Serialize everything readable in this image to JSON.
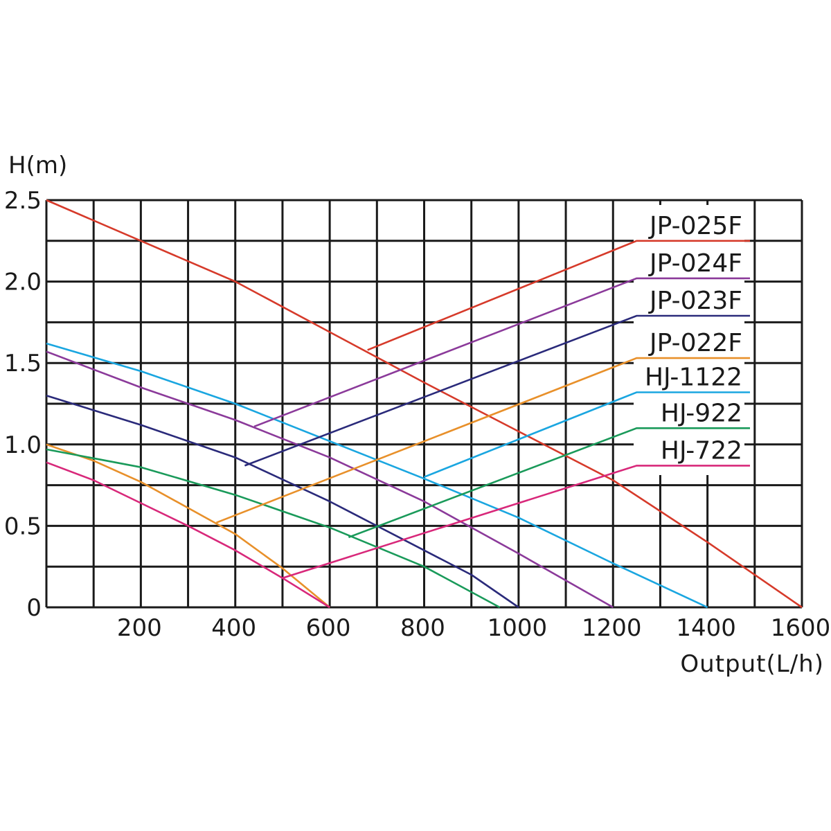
{
  "chart_data": {
    "type": "line",
    "title": "",
    "ylabel": "H(m)",
    "xlabel": "Output(L/h)",
    "xlim": [
      0,
      1600
    ],
    "ylim": [
      0,
      2.5
    ],
    "grid": true,
    "x_grid_step": 100,
    "y_grid_step": 0.25,
    "x_ticks": [
      200,
      400,
      600,
      800,
      1000,
      1200,
      1400,
      1600
    ],
    "x_tick_labels": [
      "200",
      "400",
      "600",
      "800",
      "1000",
      "1200",
      "1400",
      "1600"
    ],
    "y_ticks": [
      0,
      0.5,
      1.0,
      1.5,
      2.0,
      2.5
    ],
    "y_tick_labels": [
      "0",
      "0.5",
      "1.0",
      "1.5",
      "2.0",
      "2.5"
    ],
    "legend_position": "upper right (inside plot, labels with leader lines)",
    "series": [
      {
        "name": "JP-025F",
        "color": "#d63a2a",
        "points": [
          [
            0,
            2.5
          ],
          [
            200,
            2.25
          ],
          [
            400,
            2.0
          ],
          [
            600,
            1.69
          ],
          [
            800,
            1.38
          ],
          [
            1000,
            1.08
          ],
          [
            1200,
            0.78
          ],
          [
            1400,
            0.4
          ],
          [
            1600,
            0
          ]
        ],
        "leader": [
          [
            680,
            1.58
          ],
          [
            1250,
            2.25
          ],
          [
            1490,
            2.25
          ]
        ]
      },
      {
        "name": "JP-024F",
        "color": "#8b3a9a",
        "points": [
          [
            0,
            1.57
          ],
          [
            200,
            1.35
          ],
          [
            400,
            1.15
          ],
          [
            600,
            0.92
          ],
          [
            800,
            0.65
          ],
          [
            1000,
            0.33
          ],
          [
            1200,
            0
          ]
        ],
        "leader": [
          [
            440,
            1.11
          ],
          [
            1250,
            2.02
          ],
          [
            1490,
            2.02
          ]
        ]
      },
      {
        "name": "JP-023F",
        "color": "#2a2a7a",
        "points": [
          [
            0,
            1.3
          ],
          [
            200,
            1.12
          ],
          [
            400,
            0.92
          ],
          [
            600,
            0.65
          ],
          [
            800,
            0.35
          ],
          [
            900,
            0.2
          ],
          [
            1000,
            0
          ]
        ],
        "leader": [
          [
            420,
            0.87
          ],
          [
            1250,
            1.79
          ],
          [
            1490,
            1.79
          ]
        ]
      },
      {
        "name": "JP-022F",
        "color": "#e8902a",
        "points": [
          [
            0,
            1.0
          ],
          [
            100,
            0.9
          ],
          [
            200,
            0.77
          ],
          [
            300,
            0.61
          ],
          [
            400,
            0.45
          ],
          [
            500,
            0.24
          ],
          [
            600,
            0
          ]
        ],
        "leader": [
          [
            360,
            0.52
          ],
          [
            1250,
            1.53
          ],
          [
            1490,
            1.53
          ]
        ]
      },
      {
        "name": "HJ-1122",
        "color": "#1aa6e0",
        "points": [
          [
            0,
            1.62
          ],
          [
            200,
            1.45
          ],
          [
            400,
            1.25
          ],
          [
            600,
            1.02
          ],
          [
            800,
            0.79
          ],
          [
            1000,
            0.55
          ],
          [
            1200,
            0.27
          ],
          [
            1400,
            0
          ]
        ],
        "leader": [
          [
            800,
            0.8
          ],
          [
            1250,
            1.32
          ],
          [
            1490,
            1.32
          ]
        ]
      },
      {
        "name": "HJ-922",
        "color": "#1a9a5a",
        "points": [
          [
            0,
            0.97
          ],
          [
            200,
            0.86
          ],
          [
            400,
            0.69
          ],
          [
            600,
            0.49
          ],
          [
            800,
            0.25
          ],
          [
            960,
            0
          ]
        ],
        "leader": [
          [
            640,
            0.43
          ],
          [
            1250,
            1.1
          ],
          [
            1490,
            1.1
          ]
        ]
      },
      {
        "name": "HJ-722",
        "color": "#d8287a",
        "points": [
          [
            0,
            0.89
          ],
          [
            100,
            0.78
          ],
          [
            200,
            0.64
          ],
          [
            300,
            0.5
          ],
          [
            400,
            0.35
          ],
          [
            500,
            0.18
          ],
          [
            600,
            0
          ]
        ],
        "leader": [
          [
            500,
            0.18
          ],
          [
            1250,
            0.87
          ],
          [
            1490,
            0.87
          ]
        ]
      }
    ]
  },
  "labels": {
    "y_axis_title": "H(m)",
    "x_axis_title": "Output(L/h)",
    "legend": [
      "JP-025F",
      "JP-024F",
      "JP-023F",
      "JP-022F",
      "HJ-1122",
      "HJ-922",
      "HJ-722"
    ]
  }
}
